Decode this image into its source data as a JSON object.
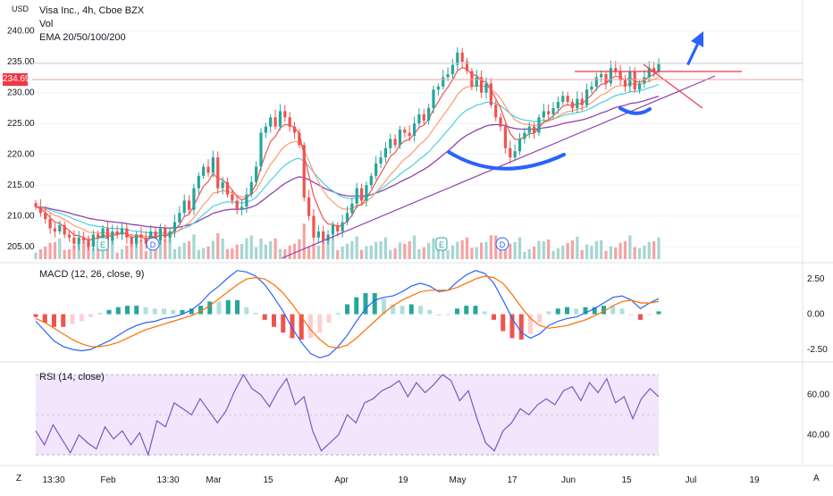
{
  "currency": "USD",
  "legend": {
    "main_title": "Visa Inc., 4h, Cboe BZX",
    "volume": "Vol",
    "ema": "EMA 20/50/100/200",
    "macd": "MACD (12, 26, close, 9)",
    "rsi": "RSI (14, close)"
  },
  "last_price_label": "234.69",
  "corner_left": "Z",
  "corner_right": "A",
  "colors": {
    "up": "#26a69a",
    "down": "#ef5350",
    "vol_up": "#a5d6d2",
    "vol_down": "#f5a3a3",
    "ema20": "#ef5350",
    "ema50": "#ff9a6e",
    "ema100": "#4dd0e1",
    "ema200": "#8e44ad",
    "trendline": "#8e44ad",
    "resistance": "#f23645",
    "cup": "#2962ff",
    "arrow": "#2962ff",
    "macd_line": "#2962ff",
    "signal_line": "#ff6d00",
    "rsi_line": "#7e57c2",
    "rsi_band": "#f3e5fb"
  },
  "chart_data": [
    {
      "type": "candlestick",
      "title": "Visa Inc., 4h, Cboe BZX",
      "ylim": [
        203,
        243
      ],
      "yticks": [
        "205.00",
        "210.00",
        "215.00",
        "220.00",
        "225.00",
        "230.00",
        "235.00",
        "240.00",
        "245.00"
      ],
      "x_ticks": [
        "13:30",
        "Feb",
        "13:30",
        "Mar",
        "15",
        "Apr",
        "19",
        "May",
        "17",
        "Jun",
        "15",
        "Jul",
        "19"
      ],
      "closes": [
        211.5,
        210.5,
        209.5,
        208,
        207.5,
        208.5,
        207,
        206.5,
        205.5,
        206.5,
        206,
        205,
        207,
        206.5,
        208,
        206,
        207.5,
        207,
        208,
        206.5,
        205.5,
        207,
        206.5,
        205.5,
        207.5,
        206,
        208,
        206.5,
        207.5,
        209,
        210.5,
        212.5,
        211,
        214.5,
        216.5,
        218,
        217,
        219.5,
        214.5,
        215.5,
        213.5,
        212.5,
        211,
        211.5,
        213.5,
        215.5,
        218,
        223.5,
        224.5,
        226,
        224.5,
        227,
        226,
        224.5,
        223.5,
        221.5,
        213,
        210,
        206.5,
        207.5,
        206,
        207,
        208.5,
        207.5,
        209,
        210.5,
        212,
        214.5,
        212.5,
        215,
        216.5,
        218.5,
        219.5,
        221,
        222.5,
        221.5,
        224,
        223.5,
        223,
        225,
        226.5,
        225.5,
        227.5,
        230.5,
        231,
        232.5,
        233,
        234.5,
        236.5,
        235,
        233.5,
        231,
        232.5,
        230,
        231.5,
        228,
        226,
        224.5,
        221,
        219.5,
        220.5,
        222.5,
        223.5,
        224.5,
        223.5,
        226,
        227,
        226.5,
        227.5,
        228.5,
        229.5,
        228.5,
        227.5,
        229,
        228,
        230.5,
        231,
        232.5,
        233,
        231.5,
        234,
        233.5,
        232,
        231,
        233.5,
        230.5,
        231.5,
        232.5,
        234,
        233.5,
        234.69
      ],
      "last_close": 234.69,
      "annotations": [
        "E",
        "D",
        "E",
        "D"
      ]
    },
    {
      "type": "line",
      "title": "MACD (12, 26, close, 9)",
      "ylim": [
        -3.2,
        3.4
      ],
      "yticks": [
        "2.50",
        "0.00",
        "-2.50"
      ],
      "series": [
        {
          "name": "MACD",
          "values": [
            -0.5,
            -1.2,
            -1.9,
            -2.3,
            -2.5,
            -2.6,
            -2.5,
            -2.2,
            -1.9,
            -1.5,
            -1.1,
            -0.8,
            -0.6,
            -0.5,
            -0.3,
            -0.2,
            0.0,
            0.3,
            0.8,
            1.5,
            2.0,
            2.6,
            3.1,
            3.0,
            2.7,
            2.1,
            1.2,
            0.2,
            -1.0,
            -2.0,
            -2.8,
            -3.1,
            -2.9,
            -2.3,
            -1.5,
            -0.5,
            0.4,
            1.0,
            1.2,
            1.3,
            1.6,
            2.0,
            2.2,
            2.0,
            1.6,
            1.7,
            2.3,
            2.8,
            3.1,
            2.9,
            2.2,
            1.0,
            -0.3,
            -1.3,
            -1.7,
            -1.4,
            -0.8,
            -0.5,
            -0.3,
            -0.2,
            0.1,
            0.4,
            0.8,
            1.2,
            1.3,
            1.0,
            0.4,
            0.8,
            1.1
          ]
        },
        {
          "name": "Signal",
          "values": [
            -0.3,
            -0.6,
            -1.0,
            -1.4,
            -1.8,
            -2.1,
            -2.3,
            -2.3,
            -2.2,
            -2.0,
            -1.7,
            -1.4,
            -1.1,
            -0.9,
            -0.7,
            -0.5,
            -0.3,
            -0.1,
            0.2,
            0.6,
            1.1,
            1.6,
            2.1,
            2.5,
            2.6,
            2.5,
            2.1,
            1.5,
            0.7,
            -0.2,
            -1.1,
            -1.8,
            -2.3,
            -2.4,
            -2.2,
            -1.7,
            -1.1,
            -0.5,
            0.1,
            0.6,
            1.0,
            1.3,
            1.6,
            1.7,
            1.7,
            1.7,
            1.9,
            2.2,
            2.5,
            2.7,
            2.6,
            2.2,
            1.4,
            0.5,
            -0.3,
            -0.8,
            -1.0,
            -0.9,
            -0.8,
            -0.6,
            -0.4,
            -0.1,
            0.2,
            0.6,
            0.9,
            1.0,
            0.8,
            0.8,
            0.9
          ]
        }
      ]
    },
    {
      "type": "line",
      "title": "RSI (14, close)",
      "ylim": [
        26,
        75
      ],
      "yticks": [
        "60.00",
        "40.00"
      ],
      "band": [
        30,
        70
      ],
      "series": [
        {
          "name": "RSI",
          "values": [
            42,
            35,
            45,
            38,
            31,
            40,
            36,
            33,
            44,
            38,
            42,
            35,
            41,
            30,
            47,
            44,
            56,
            53,
            50,
            58,
            52,
            46,
            52,
            62,
            70,
            63,
            60,
            54,
            62,
            68,
            55,
            59,
            42,
            32,
            36,
            40,
            50,
            46,
            56,
            58,
            62,
            64,
            67,
            59,
            66,
            61,
            65,
            70,
            67,
            57,
            62,
            48,
            36,
            32,
            42,
            46,
            53,
            50,
            55,
            58,
            55,
            62,
            64,
            57,
            66,
            61,
            68,
            56,
            59,
            48,
            58,
            63,
            59
          ]
        }
      ]
    }
  ]
}
